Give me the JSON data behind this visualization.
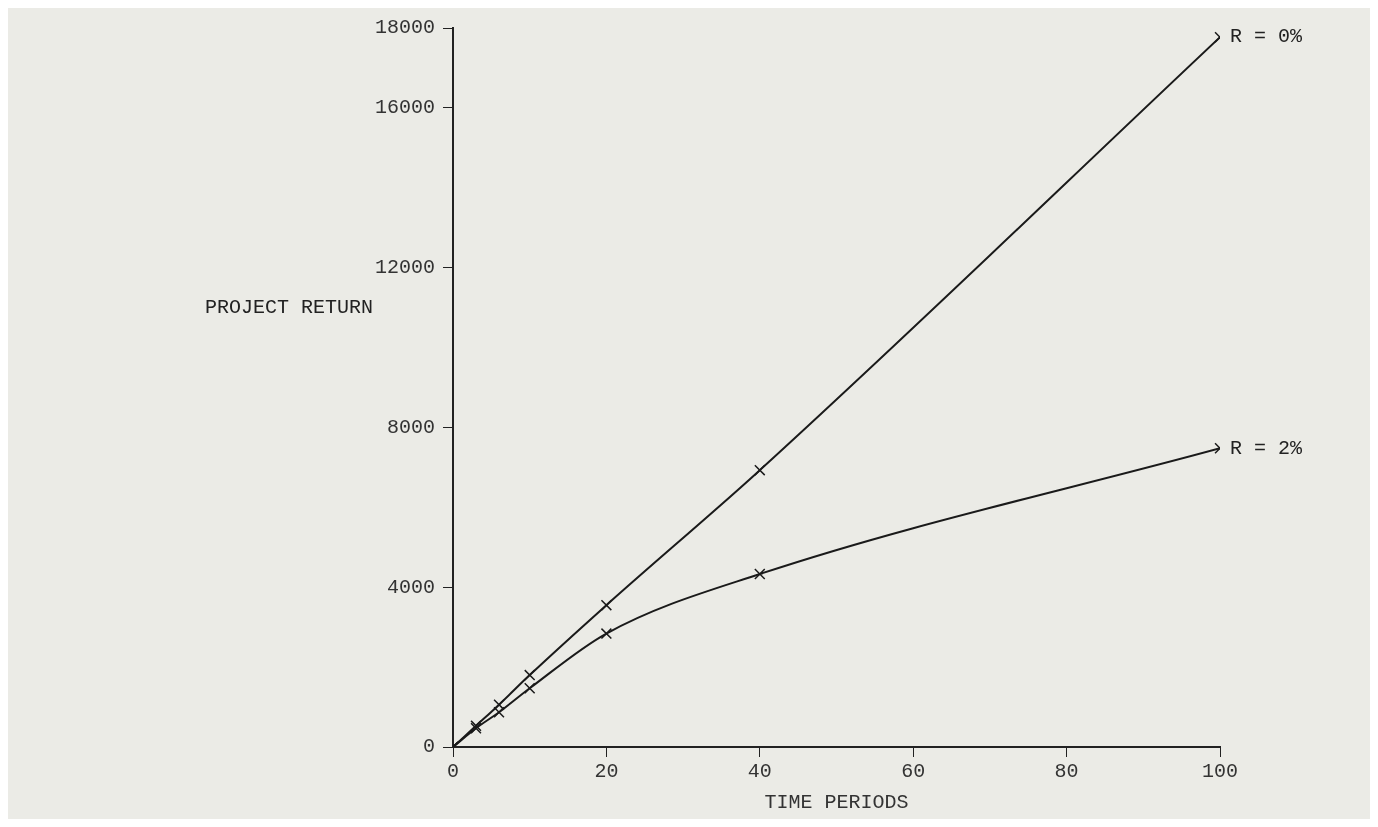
{
  "chart_data": {
    "type": "line",
    "xlabel": "TIME PERIODS",
    "ylabel": "PROJECT RETURN",
    "xlim": [
      0,
      100
    ],
    "xticks": [
      0,
      20,
      40,
      60,
      80,
      100
    ],
    "ylim": [
      0,
      18000
    ],
    "yticks": [
      0,
      4000,
      8000,
      12000,
      16000,
      18000
    ],
    "grid": false,
    "legend": false,
    "marker": "cross",
    "line_style": "solid",
    "series": [
      {
        "name": "R = 0%",
        "color": "#1a1a1a",
        "x": [
          0,
          3,
          6,
          10,
          20,
          40,
          100
        ],
        "values": [
          0,
          530,
          1060,
          1800,
          3550,
          6930,
          17770
        ]
      },
      {
        "name": "R = 2%",
        "color": "#1a1a1a",
        "x": [
          0,
          3,
          6,
          10,
          20,
          40,
          100
        ],
        "values": [
          0,
          470,
          870,
          1470,
          2840,
          4330,
          7480
        ]
      }
    ]
  }
}
